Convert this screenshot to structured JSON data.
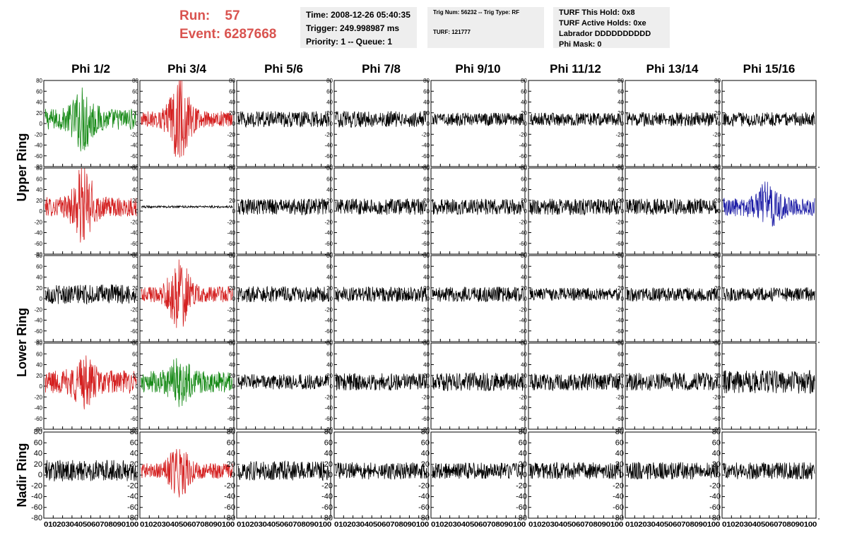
{
  "header": {
    "run_label": "Run:",
    "run_value": "57",
    "event_label": "Event:",
    "event_value": "6287668",
    "event_color": "#d9534f"
  },
  "time_box": {
    "time": "Time: 2008-12-26 05:40:35",
    "trigger": "Trigger: 249.998987 ms",
    "priority": "Priority: 1 -- Queue: 1"
  },
  "trig_box": {
    "trig": "Trig Num: 56232 -- Trig Type: RF",
    "turf": "TURF: 121777"
  },
  "turf_box": {
    "hold": "TURF This Hold: 0x8",
    "active": "TURF Active Holds: 0xe",
    "labrador": "Labrador DDDDDDDDDD",
    "phi_mask": "Phi Mask: 0"
  },
  "columns": [
    "Phi 1/2",
    "Phi 3/4",
    "Phi 5/6",
    "Phi 7/8",
    "Phi 9/10",
    "Phi 11/12",
    "Phi 13/14",
    "Phi 15/16"
  ],
  "rings": [
    "Upper Ring",
    "Lower Ring",
    "Nadir Ring"
  ],
  "y_ticks": [
    "80",
    "60",
    "40",
    "20",
    "0",
    "-20",
    "-40",
    "-60",
    "-80"
  ],
  "x_ticks_compact": "0 10 20 30 40 50 60 70 80 90 100",
  "colors": {
    "black": "#000000",
    "red": "#d42020",
    "green": "#178a17",
    "blue": "#1c1ca6"
  },
  "chart_data": {
    "type": "line",
    "title": "",
    "x_range": [
      0,
      100
    ],
    "y_range": [
      -80,
      80
    ],
    "rows": [
      {
        "row_label": "Upper Ring",
        "panels": [
          {
            "color": "green",
            "amplitude": 20,
            "burst_center": 42,
            "burst_amp": 45
          },
          {
            "color": "red",
            "amplitude": 15,
            "burst_center": 42,
            "burst_amp": 65
          },
          {
            "color": "black",
            "amplitude": 15,
            "burst_center": null,
            "burst_amp": 0
          },
          {
            "color": "black",
            "amplitude": 15,
            "burst_center": null,
            "burst_amp": 0
          },
          {
            "color": "black",
            "amplitude": 12,
            "burst_center": null,
            "burst_amp": 0
          },
          {
            "color": "black",
            "amplitude": 12,
            "burst_center": null,
            "burst_amp": 0
          },
          {
            "color": "black",
            "amplitude": 13,
            "burst_center": null,
            "burst_amp": 0
          },
          {
            "color": "black",
            "amplitude": 13,
            "burst_center": null,
            "burst_amp": 0
          }
        ]
      },
      {
        "row_label": "",
        "panels": [
          {
            "color": "red",
            "amplitude": 18,
            "burst_center": 42,
            "burst_amp": 60
          },
          {
            "color": "black",
            "amplitude": 2,
            "burst_center": null,
            "burst_amp": 0
          },
          {
            "color": "black",
            "amplitude": 15,
            "burst_center": null,
            "burst_amp": 0
          },
          {
            "color": "black",
            "amplitude": 15,
            "burst_center": null,
            "burst_amp": 0
          },
          {
            "color": "black",
            "amplitude": 15,
            "burst_center": null,
            "burst_amp": 0
          },
          {
            "color": "black",
            "amplitude": 15,
            "burst_center": null,
            "burst_amp": 0
          },
          {
            "color": "black",
            "amplitude": 15,
            "burst_center": null,
            "burst_amp": 0
          },
          {
            "color": "blue",
            "amplitude": 18,
            "burst_center": 48,
            "burst_amp": 30
          }
        ]
      },
      {
        "row_label": "Lower Ring",
        "panels": [
          {
            "color": "black",
            "amplitude": 18,
            "burst_center": null,
            "burst_amp": 0
          },
          {
            "color": "red",
            "amplitude": 15,
            "burst_center": 42,
            "burst_amp": 55
          },
          {
            "color": "black",
            "amplitude": 15,
            "burst_center": null,
            "burst_amp": 0
          },
          {
            "color": "black",
            "amplitude": 14,
            "burst_center": null,
            "burst_amp": 0
          },
          {
            "color": "black",
            "amplitude": 14,
            "burst_center": null,
            "burst_amp": 0
          },
          {
            "color": "black",
            "amplitude": 12,
            "burst_center": null,
            "burst_amp": 0
          },
          {
            "color": "black",
            "amplitude": 13,
            "burst_center": null,
            "burst_amp": 0
          },
          {
            "color": "black",
            "amplitude": 13,
            "burst_center": null,
            "burst_amp": 0
          }
        ]
      },
      {
        "row_label": "",
        "panels": [
          {
            "color": "red",
            "amplitude": 22,
            "burst_center": 42,
            "burst_amp": 30
          },
          {
            "color": "green",
            "amplitude": 20,
            "burst_center": 42,
            "burst_amp": 30
          },
          {
            "color": "black",
            "amplitude": 14,
            "burst_center": null,
            "burst_amp": 0
          },
          {
            "color": "black",
            "amplitude": 16,
            "burst_center": null,
            "burst_amp": 0
          },
          {
            "color": "black",
            "amplitude": 17,
            "burst_center": null,
            "burst_amp": 0
          },
          {
            "color": "black",
            "amplitude": 16,
            "burst_center": null,
            "burst_amp": 0
          },
          {
            "color": "black",
            "amplitude": 17,
            "burst_center": null,
            "burst_amp": 0
          },
          {
            "color": "black",
            "amplitude": 22,
            "burst_center": null,
            "burst_amp": 0
          }
        ]
      },
      {
        "row_label": "Nadir Ring",
        "panels": [
          {
            "color": "black",
            "amplitude": 20,
            "burst_center": null,
            "burst_amp": 0
          },
          {
            "color": "red",
            "amplitude": 14,
            "burst_center": 42,
            "burst_amp": 40
          },
          {
            "color": "black",
            "amplitude": 18,
            "burst_center": null,
            "burst_amp": 0
          },
          {
            "color": "black",
            "amplitude": 16,
            "burst_center": null,
            "burst_amp": 0
          },
          {
            "color": "black",
            "amplitude": 15,
            "burst_center": null,
            "burst_amp": 0
          },
          {
            "color": "black",
            "amplitude": 16,
            "burst_center": null,
            "burst_amp": 0
          },
          {
            "color": "black",
            "amplitude": 16,
            "burst_center": null,
            "burst_amp": 0
          },
          {
            "color": "black",
            "amplitude": 16,
            "burst_center": null,
            "burst_amp": 0
          }
        ]
      }
    ]
  }
}
